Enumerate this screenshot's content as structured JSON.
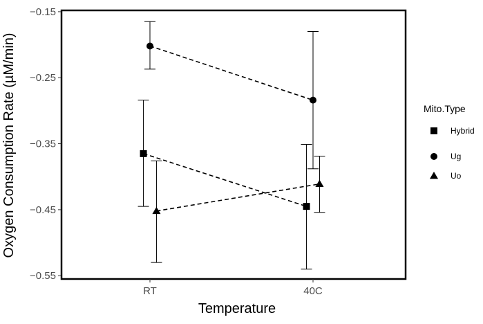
{
  "chart_data": {
    "type": "line",
    "xlabel": "Temperature",
    "ylabel": "Oxygen Consumption Rate (µM/min)",
    "categories": [
      "RT",
      "40C"
    ],
    "ylim": [
      -0.555,
      -0.148
    ],
    "yticks": [
      -0.15,
      -0.25,
      -0.35,
      -0.45,
      -0.55
    ],
    "ytick_labels": [
      "−0.15",
      "−0.25",
      "−0.35",
      "−0.45",
      "−0.55"
    ],
    "grid": false,
    "line_style": "dashed",
    "legend": {
      "title": "Mito.Type",
      "placement": "right"
    },
    "series": [
      {
        "name": "Hybrid",
        "marker": "square",
        "dodge": -0.04,
        "values": [
          -0.365,
          -0.445
        ],
        "err_low": [
          -0.445,
          -0.54
        ],
        "err_high": [
          -0.284,
          -0.351
        ]
      },
      {
        "name": "Ug",
        "marker": "circle",
        "dodge": 0.0,
        "values": [
          -0.202,
          -0.284
        ],
        "err_low": [
          -0.237,
          -0.388
        ],
        "err_high": [
          -0.165,
          -0.18
        ]
      },
      {
        "name": "Uo",
        "marker": "triangle",
        "dodge": 0.04,
        "values": [
          -0.452,
          -0.411
        ],
        "err_low": [
          -0.53,
          -0.454
        ],
        "err_high": [
          -0.376,
          -0.369
        ]
      }
    ]
  }
}
